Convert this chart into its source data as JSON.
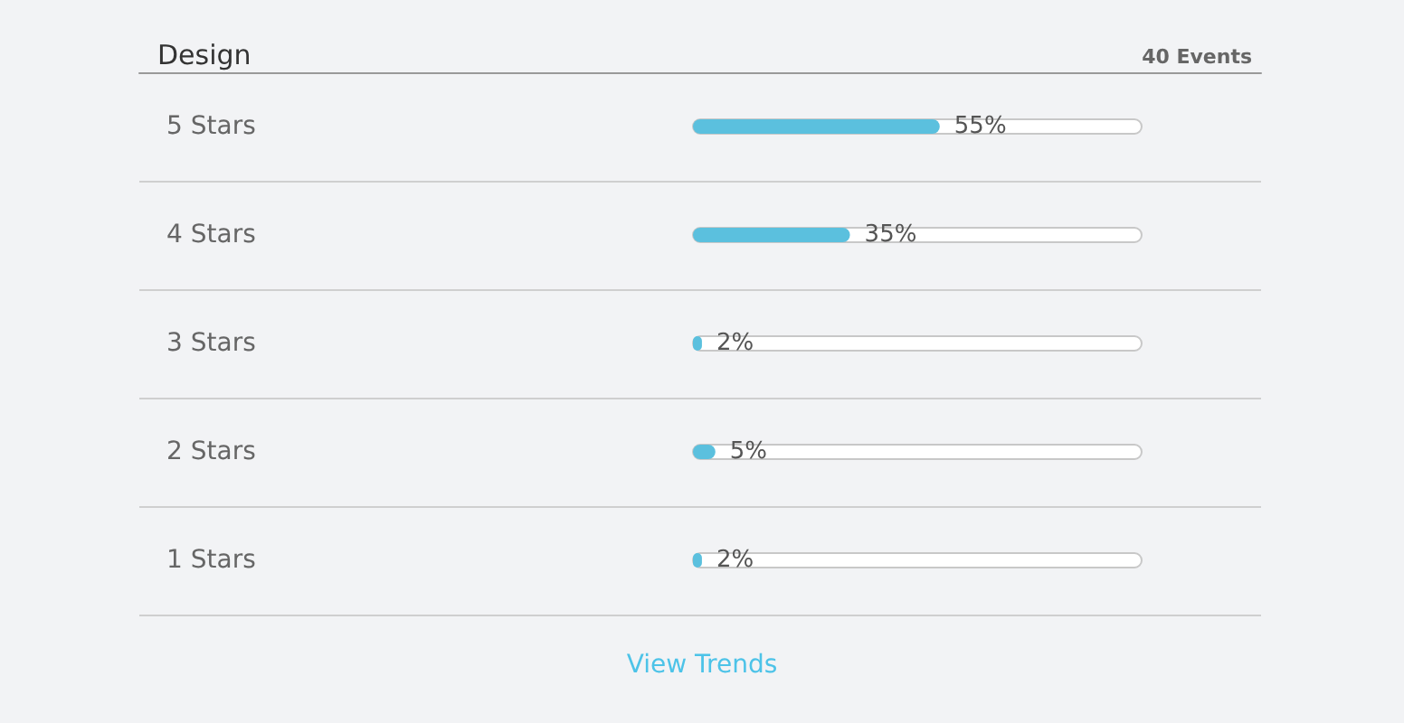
{
  "chart_data": {
    "type": "bar",
    "orientation": "horizontal",
    "title": "Design",
    "subtitle": "40 Events",
    "categories": [
      "5 Stars",
      "4 Stars",
      "3 Stars",
      "2 Stars",
      "1 Stars"
    ],
    "values": [
      55,
      35,
      2,
      5,
      2
    ],
    "color": "#5bc0de",
    "value_labels": [
      "55%",
      "35%",
      "2%",
      "5%",
      "2%"
    ],
    "xlim": [
      0,
      100
    ],
    "tick_labels": "y",
    "grid": "y",
    "annotations": [
      "View Trends"
    ]
  }
}
